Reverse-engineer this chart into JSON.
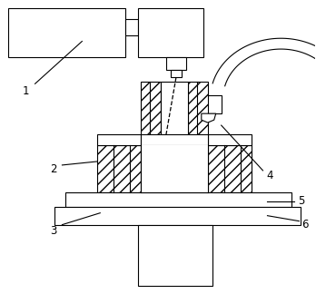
{
  "background_color": "#ffffff",
  "line_color": "#000000",
  "fig_width": 3.48,
  "fig_height": 3.24,
  "dpi": 100
}
